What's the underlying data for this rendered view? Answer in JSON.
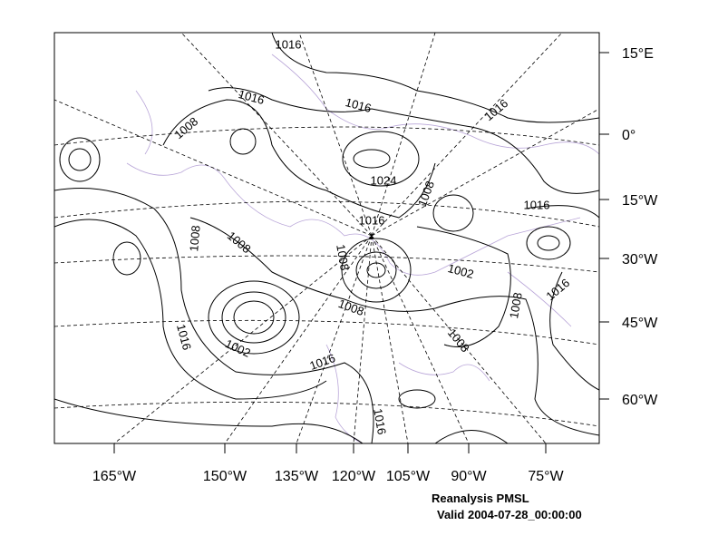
{
  "map": {
    "lat_labels": [
      "15°E",
      "0°",
      "15°W",
      "30°W",
      "45°W",
      "60°W"
    ],
    "lon_labels": [
      "165°W",
      "150°W",
      "135°W",
      "120°W",
      "105°W",
      "90°W",
      "75°W"
    ],
    "contour_labels": [
      "1016",
      "1016",
      "1016",
      "1016",
      "1008",
      "1024",
      "1008",
      "1016",
      "1016",
      "1008",
      "1008",
      "1008",
      "1002",
      "1016",
      "1008",
      "1008",
      "1016",
      "1002",
      "1008",
      "1016",
      "1016"
    ],
    "title": "Reanalysis PMSL",
    "valid": "Valid 2004-07-28_00:00:00"
  }
}
